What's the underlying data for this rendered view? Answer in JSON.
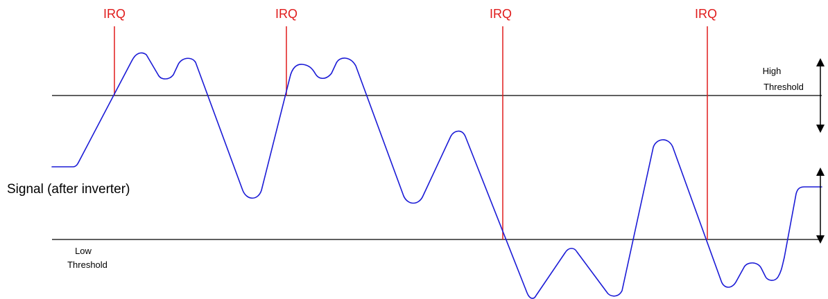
{
  "colors": {
    "signal": "#1a1ad6",
    "irq": "#e01b1b",
    "threshold": "#000000",
    "text": "#000000"
  },
  "labels": {
    "irq": "IRQ",
    "signal": "Signal (after inverter)",
    "high_threshold_line1": "High",
    "high_threshold_line2": "Threshold",
    "low_threshold_line1": "Low",
    "low_threshold_line2": "Threshold"
  },
  "irq_count": 4
}
